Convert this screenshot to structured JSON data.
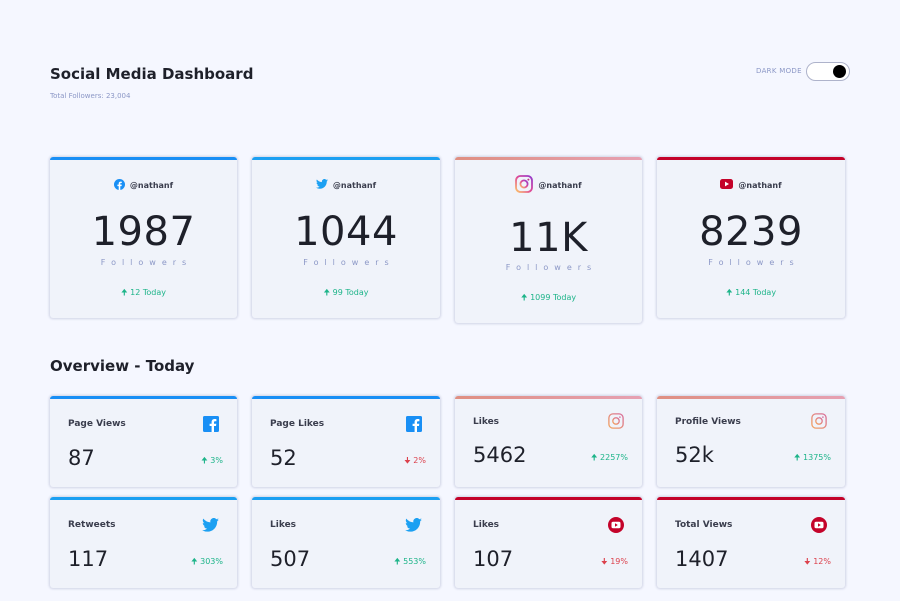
{
  "header": {
    "title": "Social Media Dashboard",
    "total_followers": "Total Followers: 23,004",
    "dark_mode_label": "DARK MODE"
  },
  "colors": {
    "facebook": "#198ff5",
    "twitter": "#1ca0f2",
    "instagram": "#df8f82",
    "youtube": "#c4032a",
    "up": "#1db489",
    "down": "#dc414c"
  },
  "followers": [
    {
      "platform": "facebook",
      "icon": "facebook-icon",
      "handle": "@nathanf",
      "count": "1987",
      "label": "Followers",
      "today": "12 Today",
      "trend": "up"
    },
    {
      "platform": "twitter",
      "icon": "twitter-icon",
      "handle": "@nathanf",
      "count": "1044",
      "label": "Followers",
      "today": "99 Today",
      "trend": "up"
    },
    {
      "platform": "instagram",
      "icon": "instagram-icon",
      "handle": "@nathanf",
      "count": "11K",
      "label": "Followers",
      "today": "1099 Today",
      "trend": "up"
    },
    {
      "platform": "youtube",
      "icon": "youtube-icon",
      "handle": "@nathanf",
      "count": "8239",
      "label": "Followers",
      "today": "144 Today",
      "trend": "up"
    }
  ],
  "overview": {
    "title": "Overview - Today",
    "items": [
      {
        "platform": "facebook",
        "icon": "facebook-icon",
        "label": "Page Views",
        "value": "87",
        "change": "3%",
        "trend": "up"
      },
      {
        "platform": "facebook",
        "icon": "facebook-icon",
        "label": "Page Likes",
        "value": "52",
        "change": "2%",
        "trend": "down"
      },
      {
        "platform": "instagram",
        "icon": "instagram-icon",
        "label": "Likes",
        "value": "5462",
        "change": "2257%",
        "trend": "up"
      },
      {
        "platform": "instagram",
        "icon": "instagram-icon",
        "label": "Profile Views",
        "value": "52k",
        "change": "1375%",
        "trend": "up"
      },
      {
        "platform": "twitter",
        "icon": "twitter-icon",
        "label": "Retweets",
        "value": "117",
        "change": "303%",
        "trend": "up"
      },
      {
        "platform": "twitter",
        "icon": "twitter-icon",
        "label": "Likes",
        "value": "507",
        "change": "553%",
        "trend": "up"
      },
      {
        "platform": "youtube",
        "icon": "youtube-icon",
        "label": "Likes",
        "value": "107",
        "change": "19%",
        "trend": "down"
      },
      {
        "platform": "youtube",
        "icon": "youtube-icon",
        "label": "Total Views",
        "value": "1407",
        "change": "12%",
        "trend": "down"
      }
    ]
  }
}
